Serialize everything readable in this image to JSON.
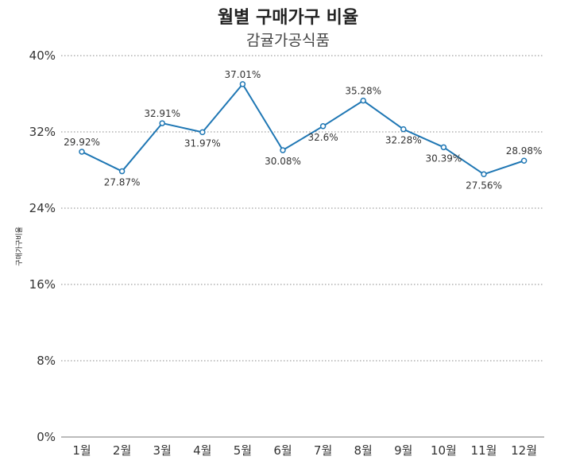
{
  "chart_data": {
    "type": "line",
    "title": "월별 구매가구 비율",
    "subtitle": "감귤가공식품",
    "xlabel": "",
    "ylabel": "구매가구비율",
    "categories": [
      "1월",
      "2월",
      "3월",
      "4월",
      "5월",
      "6월",
      "7월",
      "8월",
      "9월",
      "10월",
      "11월",
      "12월"
    ],
    "series": [
      {
        "name": "구매가구비율",
        "values": [
          29.92,
          27.87,
          32.91,
          31.97,
          37.01,
          30.08,
          32.6,
          35.28,
          32.28,
          30.39,
          27.56,
          28.98
        ],
        "labels": [
          "29.92%",
          "27.87%",
          "32.91%",
          "31.97%",
          "37.01%",
          "30.08%",
          "32.6%",
          "35.28%",
          "32.28%",
          "30.39%",
          "27.56%",
          "28.98%"
        ],
        "color": "#1f77b4"
      }
    ],
    "ylim": [
      0,
      40
    ],
    "yticks": [
      0,
      8,
      16,
      24,
      32,
      40
    ],
    "ytick_labels": [
      "0%",
      "8%",
      "16%",
      "24%",
      "32%",
      "40%"
    ],
    "grid": true
  }
}
